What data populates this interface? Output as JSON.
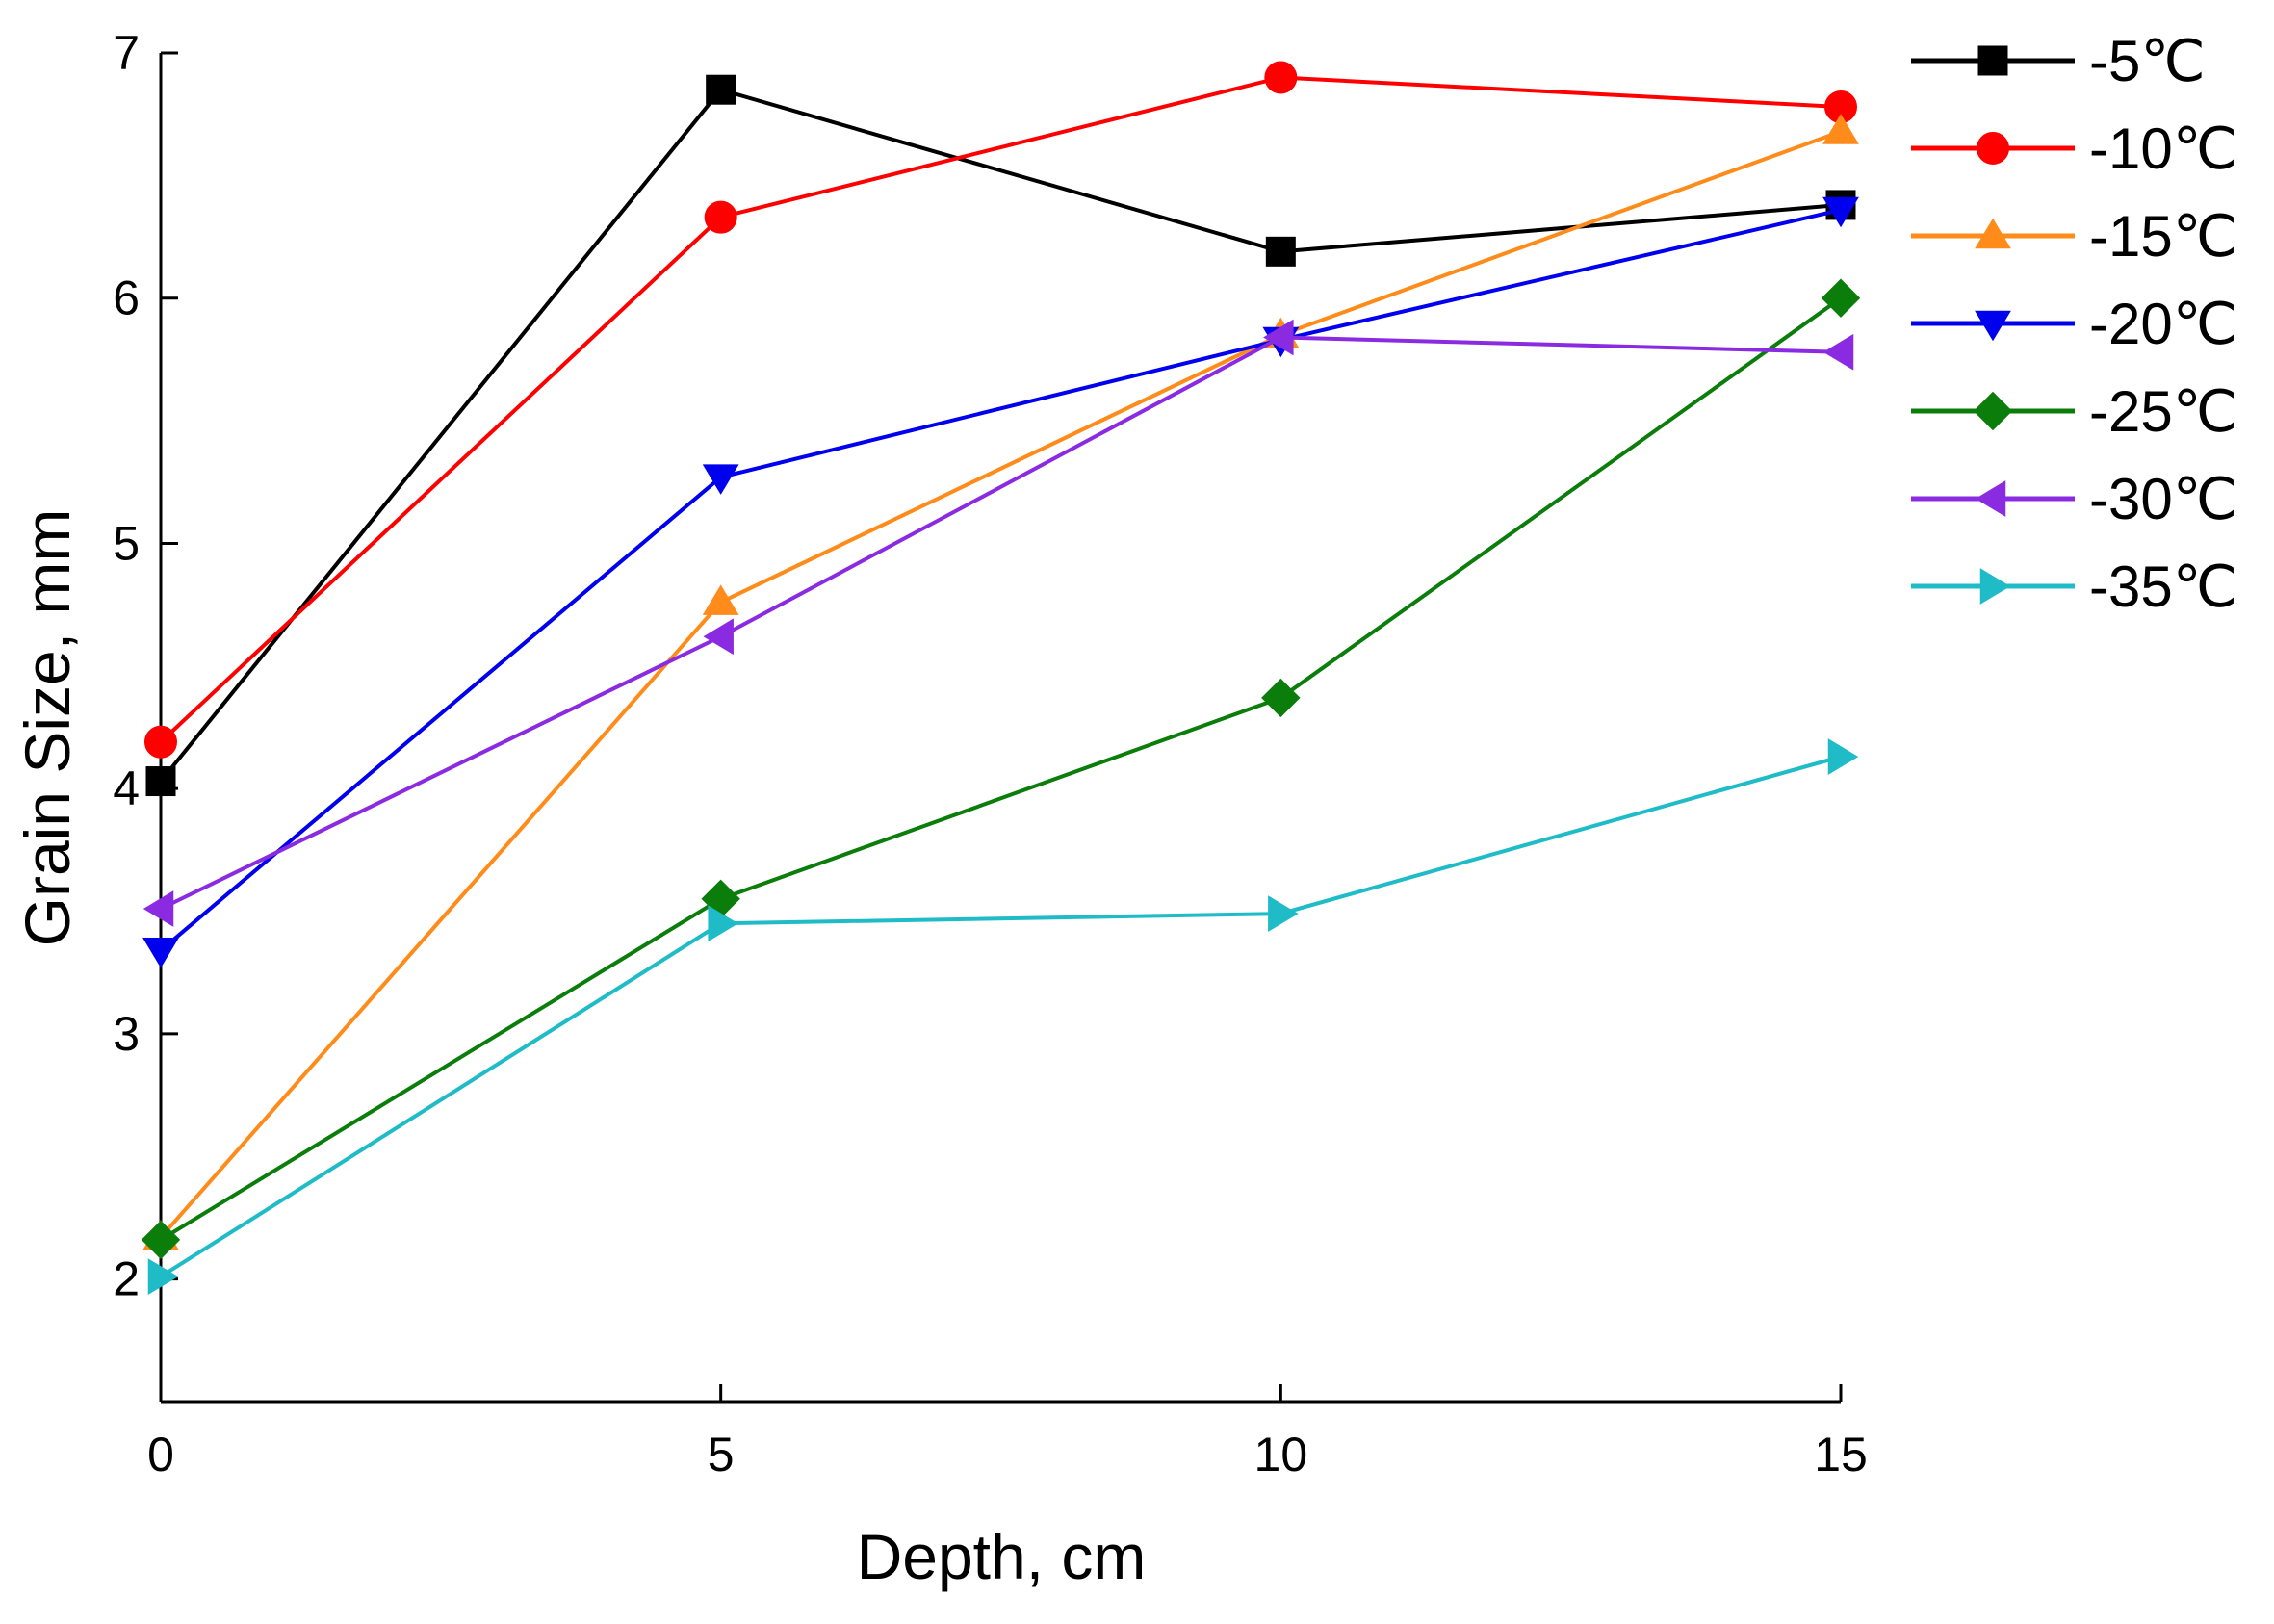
{
  "chart_data": {
    "type": "line",
    "title": "",
    "xlabel": "Depth, cm",
    "ylabel": "Grain Size, mm",
    "x": [
      0,
      5,
      10,
      15
    ],
    "xlim": [
      0,
      15
    ],
    "ylim": [
      1.5,
      7
    ],
    "xticks": [
      "0",
      "5",
      "10",
      "15"
    ],
    "yticks": [
      "2",
      "3",
      "4",
      "5",
      "6",
      "7"
    ],
    "grid": false,
    "legend_position": "right",
    "series": [
      {
        "name": "-5℃",
        "color": "#000000",
        "marker": "square",
        "values": [
          4.03,
          6.85,
          6.19,
          6.38
        ]
      },
      {
        "name": "-10℃",
        "color": "#ff0000",
        "marker": "circle",
        "values": [
          4.19,
          6.33,
          6.9,
          6.78
        ]
      },
      {
        "name": "-15℃",
        "color": "#ff8c1a",
        "marker": "triangle-up",
        "values": [
          2.17,
          4.76,
          5.85,
          6.68
        ]
      },
      {
        "name": "-20℃",
        "color": "#0000ee",
        "marker": "triangle-down",
        "values": [
          3.34,
          5.27,
          5.83,
          6.36
        ]
      },
      {
        "name": "-25℃",
        "color": "#0a7d0a",
        "marker": "diamond",
        "values": [
          2.16,
          3.55,
          4.37,
          6.0
        ]
      },
      {
        "name": "-30℃",
        "color": "#8a2be2",
        "marker": "triangle-left",
        "values": [
          3.51,
          4.62,
          5.84,
          5.78
        ]
      },
      {
        "name": "-35℃",
        "color": "#1fbcc8",
        "marker": "triangle-right",
        "values": [
          2.01,
          3.45,
          3.49,
          4.13
        ]
      }
    ]
  }
}
